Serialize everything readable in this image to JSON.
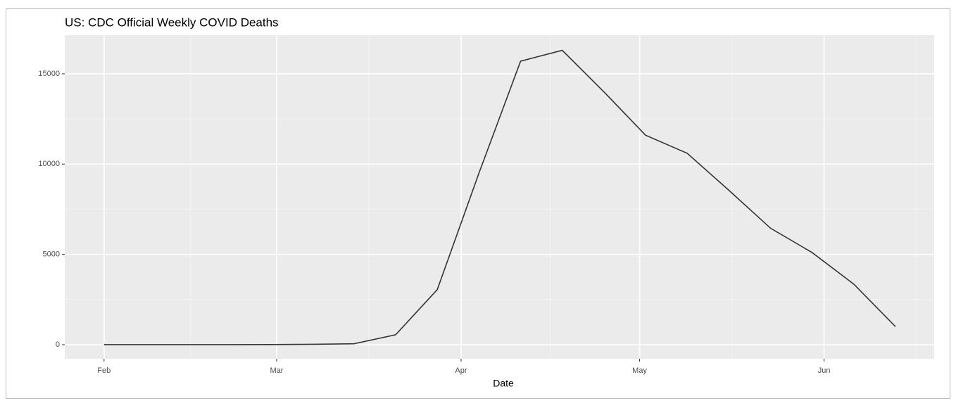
{
  "chart_data": {
    "type": "line",
    "title": "US: CDC Official Weekly COVID Deaths",
    "x_label": "Date",
    "x": [
      0,
      7,
      14,
      21,
      28,
      35,
      42,
      49,
      56,
      63,
      70,
      77,
      84,
      91,
      98,
      105,
      112,
      119,
      126,
      133
    ],
    "series": [
      {
        "color": "#333333",
        "values": [
          0,
          0,
          0,
          0,
          5,
          20,
          50,
          550,
          3050,
          9500,
          15700,
          16300,
          14000,
          11600,
          10600,
          8550,
          6450,
          5100,
          3350,
          1000
        ]
      }
    ],
    "xlim": [
      -6.6,
      139.5
    ],
    "xticks": [
      {
        "value": 0,
        "label": "Feb"
      },
      {
        "value": 29,
        "label": "Mar"
      },
      {
        "value": 60,
        "label": "Apr"
      },
      {
        "value": 90,
        "label": "May"
      },
      {
        "value": 121,
        "label": "Jun"
      }
    ],
    "ylim": [
      -780,
      17140
    ],
    "yticks": [
      0,
      5000,
      10000,
      15000
    ],
    "grid": true
  }
}
